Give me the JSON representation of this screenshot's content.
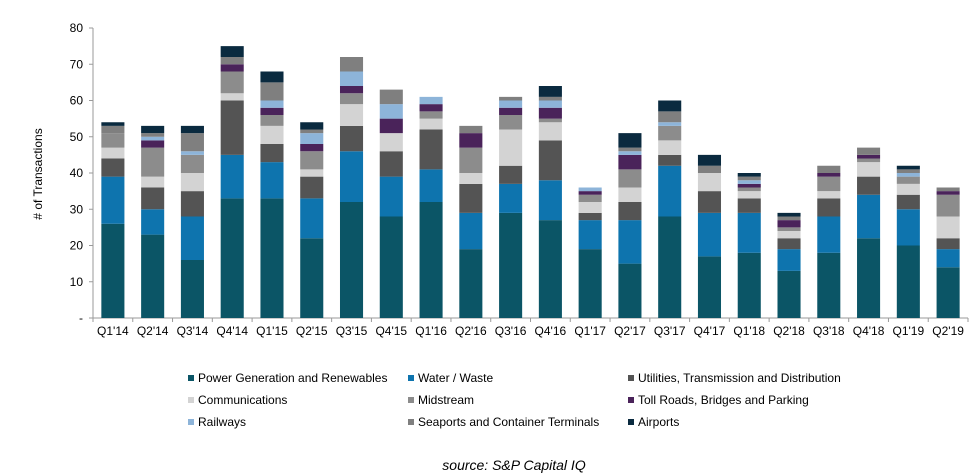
{
  "chart_data": {
    "type": "bar",
    "stacked": true,
    "title": "",
    "xlabel": "",
    "ylabel": "# of Transactions",
    "ylim": [
      0,
      80
    ],
    "yticks": [
      "-",
      "10",
      "20",
      "30",
      "40",
      "50",
      "60",
      "70",
      "80"
    ],
    "grid": false,
    "legend_position": "bottom",
    "source": "source:  S&P Capital IQ",
    "categories": [
      "Q1'14",
      "Q2'14",
      "Q3'14",
      "Q4'14",
      "Q1'15",
      "Q2'15",
      "Q3'15",
      "Q4'15",
      "Q1'16",
      "Q2'16",
      "Q3'16",
      "Q4'16",
      "Q1'17",
      "Q2'17",
      "Q3'17",
      "Q4'17",
      "Q1'18",
      "Q2'18",
      "Q3'18",
      "Q4'18",
      "Q1'19",
      "Q2'19"
    ],
    "series": [
      {
        "name": "Power Generation and Renewables",
        "color": "#0b5566",
        "values": [
          26,
          23,
          16,
          33,
          33,
          22,
          32,
          28,
          32,
          19,
          29,
          27,
          19,
          15,
          28,
          17,
          18,
          13,
          18,
          22,
          20,
          14
        ]
      },
      {
        "name": "Water / Waste",
        "color": "#0e74ae",
        "values": [
          13,
          7,
          12,
          12,
          10,
          11,
          14,
          11,
          9,
          10,
          8,
          11,
          8,
          12,
          14,
          12,
          11,
          6,
          10,
          12,
          10,
          5
        ]
      },
      {
        "name": "Utilities, Transmission and Distribution",
        "color": "#545454",
        "values": [
          5,
          6,
          7,
          15,
          5,
          6,
          7,
          7,
          11,
          8,
          5,
          11,
          2,
          5,
          3,
          6,
          4,
          3,
          5,
          5,
          4,
          3
        ]
      },
      {
        "name": "Communications",
        "color": "#d3d3d3",
        "values": [
          3,
          3,
          5,
          2,
          5,
          2,
          6,
          5,
          3,
          3,
          10,
          5,
          3,
          4,
          4,
          5,
          2,
          2,
          2,
          4,
          3,
          6
        ]
      },
      {
        "name": "Midstream",
        "color": "#8c8c8c",
        "values": [
          4,
          8,
          5,
          6,
          3,
          5,
          3,
          0,
          2,
          7,
          4,
          1,
          2,
          5,
          4,
          0,
          1,
          1,
          4,
          1,
          2,
          6
        ]
      },
      {
        "name": "Toll Roads, Bridges and Parking",
        "color": "#4a235a",
        "values": [
          0,
          2,
          0,
          2,
          2,
          2,
          2,
          4,
          2,
          4,
          2,
          3,
          1,
          4,
          0,
          0,
          1,
          2,
          1,
          1,
          0,
          1
        ]
      },
      {
        "name": "Railways",
        "color": "#8db4d9",
        "values": [
          0,
          1,
          1,
          0,
          2,
          3,
          4,
          4,
          2,
          0,
          2,
          2,
          1,
          1,
          1,
          0,
          1,
          0,
          0,
          0,
          1,
          0
        ]
      },
      {
        "name": "Seaports and Container Terminals",
        "color": "#7f7f7f",
        "values": [
          2,
          1,
          5,
          2,
          5,
          1,
          4,
          4,
          0,
          2,
          1,
          1,
          0,
          1,
          3,
          2,
          1,
          1,
          2,
          2,
          1,
          1
        ]
      },
      {
        "name": "Airports",
        "color": "#0a2a3f",
        "values": [
          1,
          2,
          2,
          3,
          3,
          2,
          0,
          0,
          0,
          0,
          0,
          3,
          0,
          4,
          3,
          3,
          1,
          1,
          0,
          0,
          1,
          0
        ]
      }
    ]
  }
}
